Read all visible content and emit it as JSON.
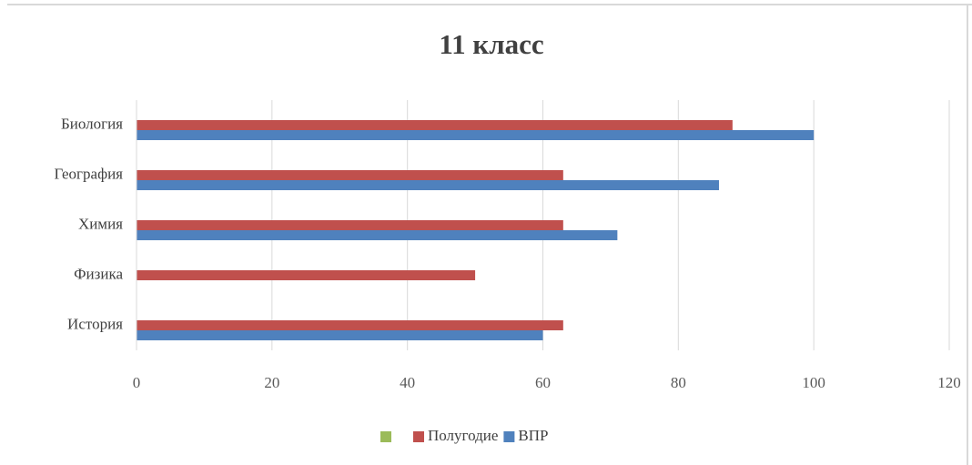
{
  "chart_data": {
    "type": "bar",
    "orientation": "horizontal",
    "title": "11 класс",
    "categories": [
      "Биология",
      "География",
      "Химия",
      "Физика",
      "История"
    ],
    "series": [
      {
        "color": "#9bbb59",
        "values": [
          null,
          null,
          null,
          null,
          null
        ]
      },
      {
        "name": "Полугодие",
        "color": "#c0504d",
        "values": [
          88,
          63,
          63,
          50,
          63
        ]
      },
      {
        "name": "ВПР",
        "color": "#4f81bd",
        "values": [
          100,
          86,
          71,
          null,
          60
        ]
      }
    ],
    "xlim": [
      0,
      120
    ],
    "xticks": [
      0,
      20,
      40,
      60,
      80,
      100,
      120
    ],
    "grid": true,
    "legend": "bottom"
  }
}
